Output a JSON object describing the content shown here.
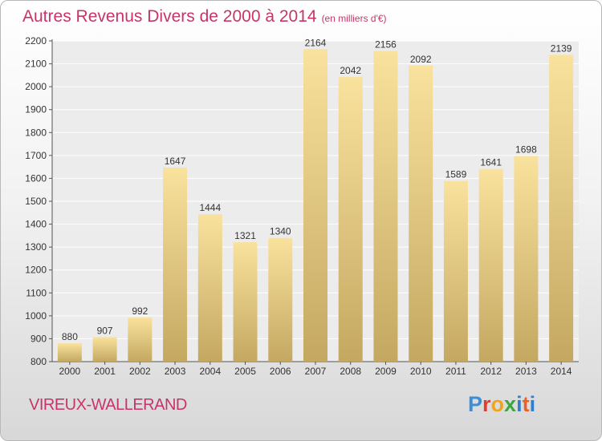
{
  "title": "Autres Revenus Divers de 2000 à 2014",
  "unit_note": "(en milliers d'€)",
  "location": "VIREUX-WALLERAND",
  "brand": "Proxiti",
  "colors": {
    "title": "#c8346a",
    "bar_light": "#f9e29d",
    "bar_dark": "#c4a862"
  },
  "chart_data": {
    "type": "bar",
    "title": "Autres Revenus Divers de 2000 à 2014",
    "categories": [
      "2000",
      "2001",
      "2002",
      "2003",
      "2004",
      "2005",
      "2006",
      "2007",
      "2008",
      "2009",
      "2010",
      "2011",
      "2012",
      "2013",
      "2014"
    ],
    "values": [
      880,
      907,
      992,
      1647,
      1444,
      1321,
      1340,
      2164,
      2042,
      2156,
      2092,
      1589,
      1641,
      1698,
      2139
    ],
    "ylim": [
      800,
      2200
    ],
    "yticks": [
      800,
      900,
      1000,
      1100,
      1200,
      1300,
      1400,
      1500,
      1600,
      1700,
      1800,
      1900,
      2000,
      2100,
      2200
    ],
    "grid": true
  }
}
